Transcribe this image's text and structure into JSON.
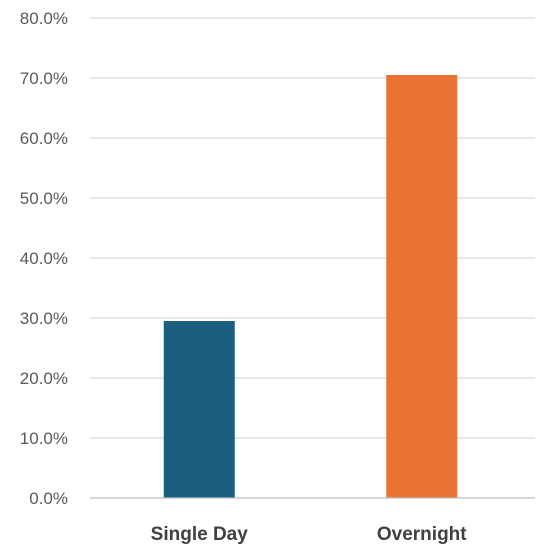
{
  "chart_data": {
    "type": "bar",
    "categories": [
      "Single Day",
      "Overnight"
    ],
    "values": [
      29.5,
      70.5
    ],
    "value_unit": "%",
    "ylim": [
      0,
      80
    ],
    "y_ticks": [
      "0.0%",
      "10.0%",
      "20.0%",
      "30.0%",
      "40.0%",
      "50.0%",
      "60.0%",
      "70.0%",
      "80.0%"
    ],
    "y_tick_values": [
      0,
      10,
      20,
      30,
      40,
      50,
      60,
      70,
      80
    ],
    "bar_colors": [
      "#1a5e80",
      "#ea7233"
    ],
    "grid": true,
    "legend": "none",
    "title": "",
    "xlabel": "",
    "ylabel": ""
  }
}
